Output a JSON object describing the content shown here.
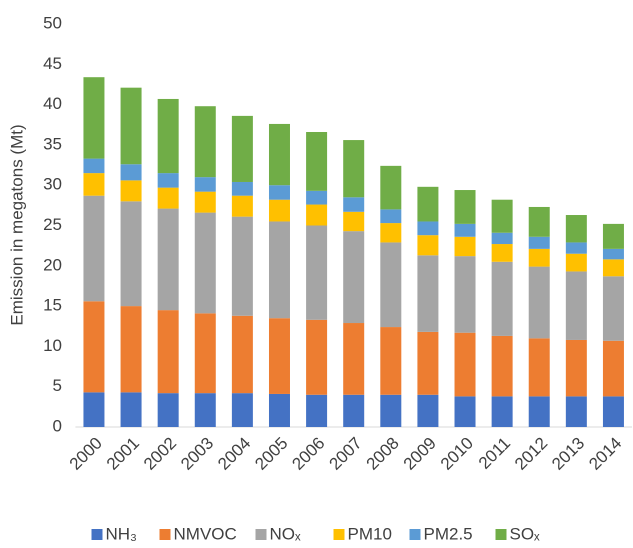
{
  "chart_data": {
    "type": "stacked_bar",
    "y_label": "Emission in megatons (Mt)",
    "categories": [
      "2000",
      "2001",
      "2002",
      "2003",
      "2004",
      "2005",
      "2006",
      "2007",
      "2008",
      "2009",
      "2010",
      "2011",
      "2012",
      "2013",
      "2014"
    ],
    "series": [
      {
        "name": "NH₃",
        "color": "#4472c4",
        "values": [
          4.3,
          4.3,
          4.2,
          4.2,
          4.2,
          4.1,
          4.0,
          4.0,
          4.0,
          4.0,
          3.8,
          3.8,
          3.8,
          3.8,
          3.8
        ]
      },
      {
        "name": "NMVOC",
        "color": "#ed7d31",
        "values": [
          11.3,
          10.7,
          10.3,
          9.9,
          9.6,
          9.4,
          9.3,
          8.9,
          8.4,
          7.8,
          7.9,
          7.5,
          7.2,
          7.0,
          6.9
        ]
      },
      {
        "name": "NOₓ",
        "color": "#a5a5a5",
        "values": [
          13.1,
          13.0,
          12.6,
          12.5,
          12.3,
          12.0,
          11.7,
          11.4,
          10.5,
          9.5,
          9.5,
          9.2,
          8.9,
          8.5,
          8.0
        ]
      },
      {
        "name": "PM10",
        "color": "#ffc000",
        "values": [
          2.8,
          2.6,
          2.6,
          2.6,
          2.6,
          2.7,
          2.6,
          2.4,
          2.4,
          2.5,
          2.4,
          2.2,
          2.2,
          2.2,
          2.1
        ]
      },
      {
        "name": "PM2.5",
        "color": "#5b9bd5",
        "values": [
          1.8,
          2.0,
          1.8,
          1.8,
          1.7,
          1.8,
          1.7,
          1.8,
          1.7,
          1.7,
          1.6,
          1.4,
          1.5,
          1.4,
          1.3
        ]
      },
      {
        "name": "SOₓ",
        "color": "#70ad47",
        "values": [
          10.1,
          9.5,
          9.2,
          8.8,
          8.2,
          7.6,
          7.3,
          7.1,
          5.4,
          4.3,
          4.2,
          4.1,
          3.7,
          3.4,
          3.1
        ]
      }
    ],
    "ylim": [
      0,
      50
    ],
    "yticks": [
      0,
      5,
      10,
      15,
      20,
      25,
      30,
      35,
      40,
      45,
      50
    ],
    "grid": false,
    "legend": "bottom"
  }
}
